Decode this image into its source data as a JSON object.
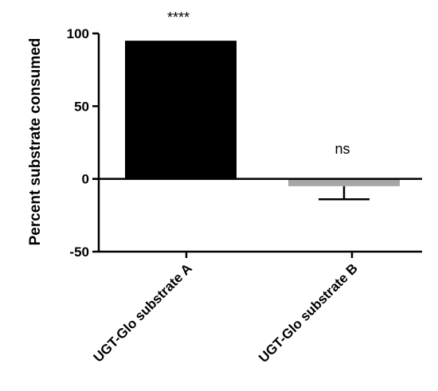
{
  "chart_data": {
    "type": "bar",
    "categories": [
      "UGT-Glo substrate A",
      "UGT-Glo substrate B"
    ],
    "values": [
      95,
      -5
    ],
    "errors_lower": [
      0,
      9
    ],
    "colors": [
      "#000000",
      "#a6a6a6"
    ],
    "annotations": [
      "****",
      "ns"
    ],
    "ylabel": "Percent substrate consumed",
    "xlabel": "",
    "ylim": [
      -50,
      100
    ],
    "yticks": [
      100,
      50,
      0,
      -50
    ],
    "grid": false,
    "legend": "none"
  }
}
